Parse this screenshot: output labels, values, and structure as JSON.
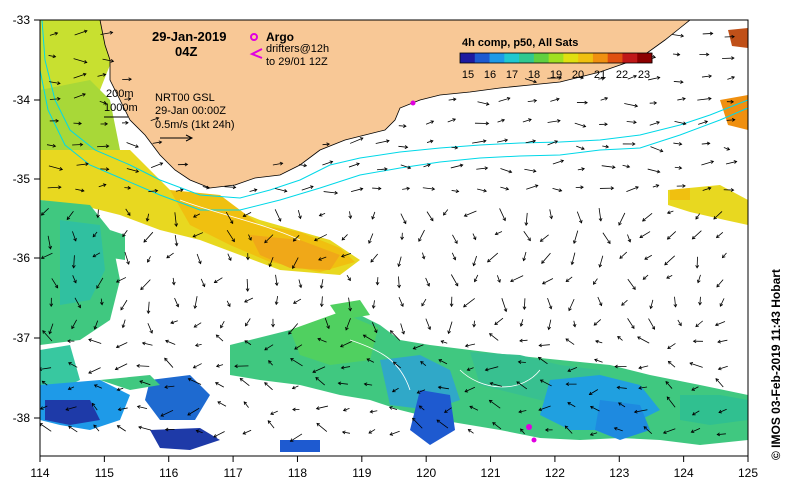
{
  "title": {
    "date": "29-Jan-2019",
    "time": "04Z"
  },
  "legend": {
    "argo_label": "Argo",
    "drifters_label": "drifters@12h",
    "drifters_to": "to 29/01 12Z",
    "symbol_argo": "argo-float-icon",
    "symbol_drifter": "drifter-chevron-icon",
    "color_argo": "#e000e0"
  },
  "depth_legend": {
    "line1": "200m",
    "line2": "1000m"
  },
  "current_info": {
    "line1": "NRT00 GSL",
    "line2": "29-Jan 00:00Z",
    "line3": "0.5m/s (1kt 24h)"
  },
  "colorbar": {
    "title": "4h comp, p50, All Sats",
    "ticks": [
      "15",
      "16",
      "17",
      "18",
      "19",
      "20",
      "21",
      "22",
      "23"
    ],
    "colors": [
      "#1e1aa0",
      "#1e5ad0",
      "#1e9ae8",
      "#20c8d0",
      "#30c890",
      "#60d040",
      "#a0e020",
      "#e0e010",
      "#f0c010",
      "#f09010",
      "#e05010",
      "#c01818",
      "#8c0000"
    ]
  },
  "axes": {
    "x_ticks": [
      "114",
      "115",
      "116",
      "117",
      "118",
      "119",
      "120",
      "121",
      "122",
      "123",
      "124",
      "125"
    ],
    "y_ticks": [
      "-33",
      "-34",
      "-35",
      "-36",
      "-37",
      "-38"
    ]
  },
  "credit": "© IMOS 03-Feb-2019 11:43 Hobart",
  "colors": {
    "land": "#f8c896",
    "ocean": "#ffffff",
    "contour": "#00d8e8"
  }
}
